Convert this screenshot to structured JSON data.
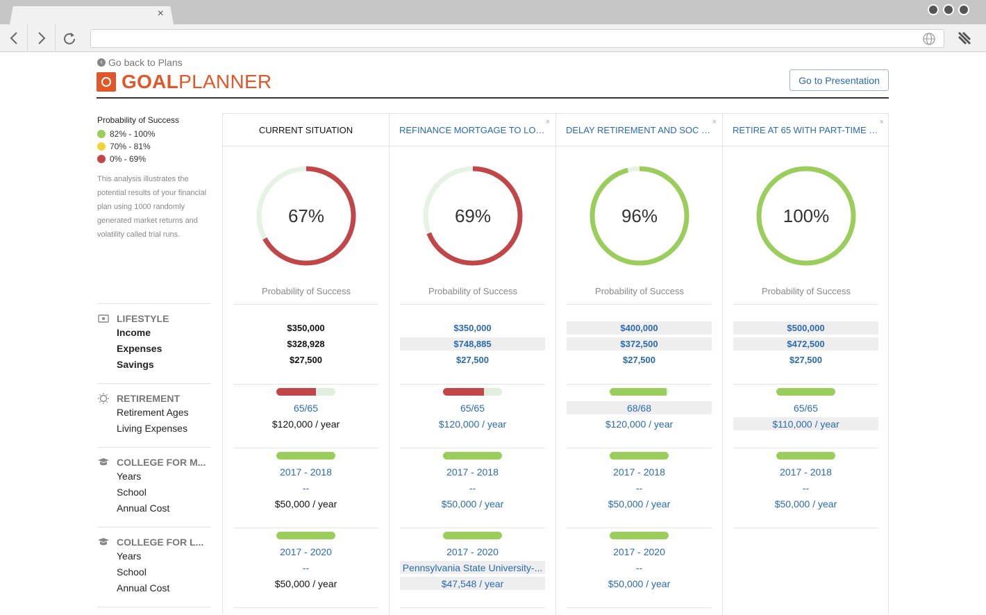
{
  "browser": {
    "tab_close": "×"
  },
  "header": {
    "back_label": "Go back to Plans",
    "logo_bold": "GOAL",
    "logo_light": "PLANNER",
    "presentation_button": "Go to Presentation"
  },
  "legend": {
    "title": "Probability of Success",
    "items": [
      {
        "label": "82% - 100%",
        "color": "#9acd5b"
      },
      {
        "label": "70% - 81%",
        "color": "#f3d33a"
      },
      {
        "label": "0% - 69%",
        "color": "#c0464a"
      }
    ],
    "description": "This analysis illustrates the potential results of your financial plan using 1000 randomly generated market returns and volatility called trial runs."
  },
  "sections": {
    "lifestyle": {
      "title": "LIFESTYLE",
      "labels": [
        "Income",
        "Expenses",
        "Savings"
      ]
    },
    "retirement": {
      "title": "RETIREMENT",
      "labels": [
        "Retirement Ages",
        "Living Expenses"
      ]
    },
    "college1": {
      "title": "COLLEGE FOR M...",
      "labels": [
        "Years",
        "School",
        "Annual Cost"
      ]
    },
    "college2": {
      "title": "COLLEGE FOR L...",
      "labels": [
        "Years",
        "School",
        "Annual Cost"
      ]
    }
  },
  "colors": {
    "red": "#c0464a",
    "green": "#9acd5b",
    "track": "#e6f2e3"
  },
  "scenarios": [
    {
      "title": "CURRENT SITUATION",
      "closable": false,
      "probability": 67,
      "pct_label": "67%",
      "prob_label": "Probability of Success",
      "income": "$350,000",
      "expenses": "$328,928",
      "savings": "$27,500",
      "ret_bar": 0.67,
      "ret_ages": "65/65",
      "ret_living": "$120,000 / year",
      "c1_bar": 1.0,
      "c1_years": "2017 - 2018",
      "c1_school": "--",
      "c1_cost": "$50,000 / year",
      "c2_bar": 1.0,
      "c2_years": "2017 - 2020",
      "c2_school": "--",
      "c2_cost": "$50,000 / year"
    },
    {
      "title": "REFINANCE MORTGAGE TO LOW...",
      "closable": true,
      "probability": 69,
      "pct_label": "69%",
      "prob_label": "Probability of Success",
      "income": "$350,000",
      "expenses": "$748,885",
      "savings": "$27,500",
      "ret_bar": 0.69,
      "ret_ages": "65/65",
      "ret_living": "$120,000 / year",
      "c1_bar": 1.0,
      "c1_years": "2017 - 2018",
      "c1_school": "--",
      "c1_cost": "$50,000 / year",
      "c2_bar": 1.0,
      "c2_years": "2017 - 2020",
      "c2_school": "Pennsylvania State University-...",
      "c2_cost": "$47,548 / year"
    },
    {
      "title": "DELAY RETIREMENT AND SOC SE...",
      "closable": true,
      "probability": 96,
      "pct_label": "96%",
      "prob_label": "Probability of Success",
      "income": "$400,000",
      "expenses": "$372,500",
      "savings": "$27,500",
      "ret_bar": 0.96,
      "ret_ages": "68/68",
      "ret_living": "$120,000 / year",
      "c1_bar": 1.0,
      "c1_years": "2017 - 2018",
      "c1_school": "--",
      "c1_cost": "$50,000 / year",
      "c2_bar": 1.0,
      "c2_years": "2017 - 2020",
      "c2_school": "--",
      "c2_cost": "$50,000 / year"
    },
    {
      "title": "RETIRE AT 65 WITH PART-TIME C...",
      "closable": true,
      "probability": 100,
      "pct_label": "100%",
      "prob_label": "Probability of Success",
      "income": "$500,000",
      "expenses": "$472,500",
      "savings": "$27,500",
      "ret_bar": 1.0,
      "ret_ages": "65/65",
      "ret_living": "$110,000 / year",
      "c1_bar": 1.0,
      "c1_years": "2017 - 2018",
      "c1_school": "--",
      "c1_cost": "$50,000 / year"
    }
  ]
}
